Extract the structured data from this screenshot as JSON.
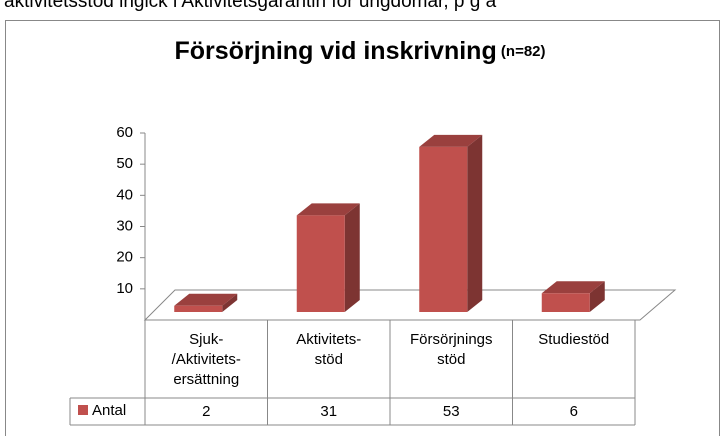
{
  "header_text": "aktivitetsstöd ingick i Aktivitetsgarantin för ungdomar, p g a",
  "chart_data": {
    "type": "bar3d",
    "title": "Försörjning vid inskrivning",
    "title_note": "(n=82)",
    "categories": [
      "Sjuk-\n/Aktivitets-\nersättning",
      "Aktivitets-\nstöd",
      "Försörjnings\nstöd",
      "Studiestöd"
    ],
    "series": [
      {
        "name": "Antal",
        "color": "#c0504d",
        "values": [
          2,
          31,
          53,
          6
        ]
      }
    ],
    "ylim": [
      0,
      60
    ],
    "yticks": [
      10,
      20,
      30,
      40,
      50,
      60
    ],
    "data_table": true
  }
}
